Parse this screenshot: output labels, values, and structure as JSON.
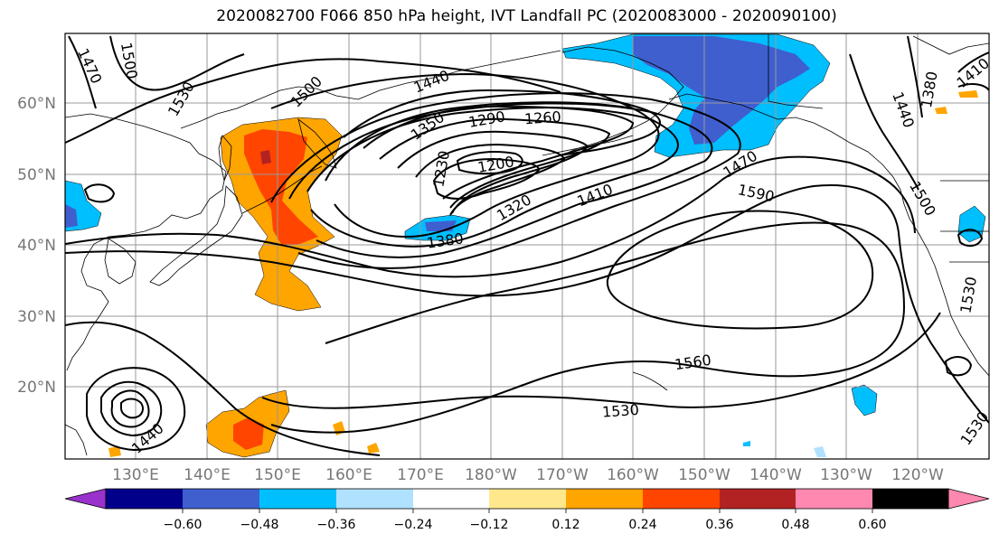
{
  "title": "2020082700 F066 850 hPa height, IVT Landfall PC (2020083000 - 2020090100)",
  "map": {
    "lat_labels": [
      "60°N",
      "50°N",
      "40°N",
      "30°N",
      "20°N"
    ],
    "lon_labels": [
      "130°E",
      "140°E",
      "150°E",
      "160°E",
      "170°E",
      "180°W",
      "170°W",
      "160°W",
      "150°W",
      "140°W",
      "130°W",
      "120°W"
    ],
    "contour_labels": [
      "1470",
      "1500",
      "1530",
      "1500",
      "1440",
      "1350",
      "1290",
      "1260",
      "1230",
      "1200",
      "1320",
      "1410",
      "1470",
      "1590",
      "1380",
      "1560",
      "1530",
      "1440",
      "1440",
      "1380",
      "1410",
      "1500",
      "1530",
      "1530"
    ],
    "colors": {
      "contour": "#000000",
      "coast": "#000000",
      "grid": "#999999",
      "lat_lon_label": "#777777"
    }
  },
  "colorbar": {
    "ticks": [
      "−0.60",
      "−0.48",
      "−0.36",
      "−0.24",
      "−0.12",
      "0.12",
      "0.24",
      "0.36",
      "0.48",
      "0.60"
    ],
    "colors": [
      "#9932CC",
      "#00008B",
      "#3F5FCF",
      "#00BFFF",
      "#B0E2FF",
      "#FFFFFF",
      "#FFE88C",
      "#FFA500",
      "#FF4500",
      "#B22222",
      "#FF88B0"
    ]
  }
}
